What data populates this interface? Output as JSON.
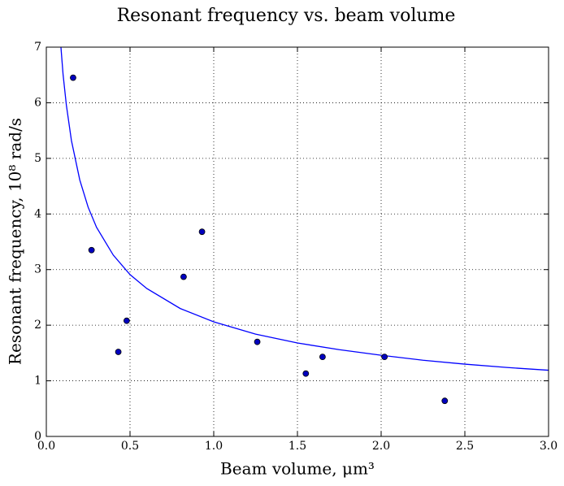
{
  "chart_data": {
    "type": "scatter",
    "title": "Resonant frequency vs. beam volume",
    "xlabel": "Beam volume, μm³",
    "ylabel": "Resonant frequency, 10⁸ rad/s",
    "xlim": [
      0,
      3
    ],
    "ylim": [
      0,
      7
    ],
    "xticks": [
      {
        "value": 0,
        "label": "0.0"
      },
      {
        "value": 0.5,
        "label": "0.5"
      },
      {
        "value": 1,
        "label": "1.0"
      },
      {
        "value": 1.5,
        "label": "1.5"
      },
      {
        "value": 2,
        "label": "2.0"
      },
      {
        "value": 2.5,
        "label": "2.5"
      },
      {
        "value": 3,
        "label": "3.0"
      }
    ],
    "yticks": [
      0,
      1,
      2,
      3,
      4,
      5,
      6,
      7
    ],
    "grid": true,
    "series": [
      {
        "type": "line",
        "color": "#0000ff",
        "x": [
          0.08,
          0.1,
          0.12,
          0.15,
          0.2,
          0.25,
          0.3,
          0.4,
          0.5,
          0.6,
          0.8,
          1.0,
          1.25,
          1.5,
          1.75,
          2.0,
          2.25,
          2.5,
          2.75,
          3.0
        ],
        "values": [
          7.28,
          6.51,
          5.95,
          5.32,
          4.61,
          4.12,
          3.76,
          3.26,
          2.91,
          2.66,
          2.3,
          2.06,
          1.84,
          1.68,
          1.56,
          1.46,
          1.37,
          1.3,
          1.24,
          1.19
        ]
      },
      {
        "type": "scatter",
        "color": "#0000bf",
        "x": [
          0.16,
          0.27,
          0.43,
          0.48,
          0.82,
          0.93,
          1.26,
          1.55,
          1.65,
          2.02,
          2.38
        ],
        "values": [
          6.45,
          3.35,
          1.52,
          2.08,
          2.87,
          3.68,
          1.7,
          1.13,
          1.43,
          1.43,
          0.64
        ]
      }
    ]
  }
}
